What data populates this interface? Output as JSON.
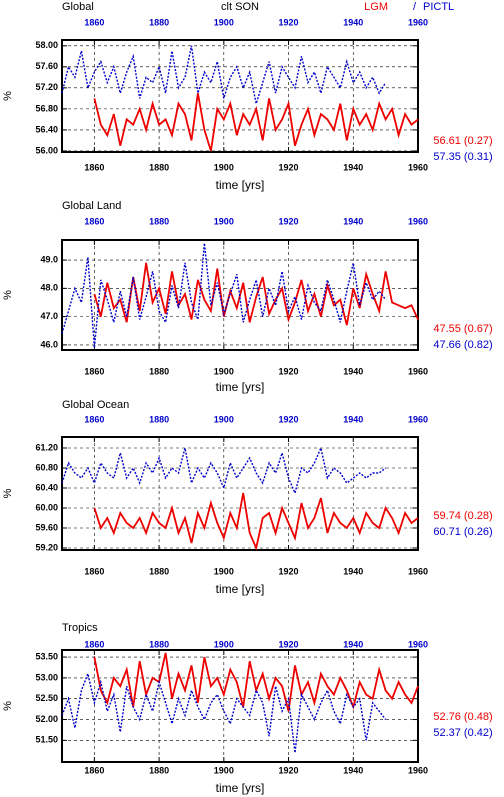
{
  "chart_data": [
    {
      "type": "line",
      "title": "Global",
      "subtitle": "clt SON",
      "legend_separator": "/",
      "xlabel": "time [yrs]",
      "ylabel": "%",
      "xlim": [
        1850,
        1960
      ],
      "xticks": [
        1860,
        1880,
        1900,
        1920,
        1940,
        1960
      ],
      "x2ticks": [
        1860,
        1880,
        1900,
        1920,
        1940,
        1960
      ],
      "x2color": "#0000cc",
      "ylim": [
        55.98,
        58.11
      ],
      "yticks": [
        {
          "value": 56,
          "label": "56.00"
        },
        {
          "value": 56.4,
          "label": "56.40"
        },
        {
          "value": 56.8,
          "label": "56.80"
        },
        {
          "value": 57.2,
          "label": "57.20"
        },
        {
          "value": 57.6,
          "label": "57.60"
        },
        {
          "value": 58,
          "label": "58.00"
        }
      ],
      "grid": true,
      "x": [
        1850,
        1852,
        1854,
        1856,
        1858,
        1860,
        1862,
        1864,
        1866,
        1868,
        1870,
        1872,
        1874,
        1876,
        1878,
        1880,
        1882,
        1884,
        1886,
        1888,
        1890,
        1892,
        1894,
        1896,
        1898,
        1900,
        1902,
        1904,
        1906,
        1908,
        1910,
        1912,
        1914,
        1916,
        1918,
        1920,
        1922,
        1924,
        1926,
        1928,
        1930,
        1932,
        1934,
        1936,
        1938,
        1940,
        1942,
        1944,
        1946,
        1948,
        1950,
        1952,
        1954,
        1956,
        1958,
        1960
      ],
      "series": [
        {
          "name": "LGM",
          "color": "#ee0000",
          "dash": false,
          "summary": "56.61 (0.27)",
          "values": [
            null,
            null,
            null,
            null,
            null,
            57.0,
            56.5,
            56.3,
            56.7,
            56.1,
            56.6,
            56.5,
            56.8,
            56.4,
            56.9,
            56.5,
            56.6,
            56.3,
            56.9,
            56.7,
            56.2,
            57.1,
            56.4,
            56.0,
            56.8,
            56.6,
            56.9,
            56.3,
            56.7,
            56.5,
            56.8,
            56.2,
            57.0,
            56.4,
            56.6,
            56.9,
            56.1,
            56.5,
            56.8,
            56.3,
            56.7,
            56.6,
            56.4,
            56.9,
            56.2,
            56.8,
            56.5,
            56.7,
            56.4,
            56.9,
            56.6,
            56.8,
            56.3,
            56.7,
            56.5,
            56.6
          ]
        },
        {
          "name": "PICTL",
          "color": "#0000cc",
          "dash": true,
          "summary": "57.35 (0.31)",
          "values": [
            57.1,
            57.6,
            57.4,
            57.9,
            57.2,
            57.5,
            57.7,
            57.3,
            57.6,
            57.1,
            57.5,
            57.8,
            57.0,
            57.4,
            57.3,
            57.6,
            57.1,
            57.9,
            57.2,
            57.4,
            58.0,
            57.1,
            57.5,
            57.3,
            57.7,
            57.0,
            57.4,
            57.6,
            57.2,
            57.5,
            56.9,
            57.3,
            57.7,
            57.1,
            57.6,
            57.4,
            57.2,
            57.8,
            57.3,
            57.5,
            57.1,
            57.6,
            57.4,
            57.2,
            57.7,
            57.3,
            57.5,
            57.2,
            57.4,
            57.1,
            57.3,
            null,
            null,
            null,
            null,
            null
          ]
        }
      ]
    },
    {
      "type": "line",
      "title": "Global Land",
      "xlabel": "time [yrs]",
      "ylabel": "%",
      "xlim": [
        1850,
        1960
      ],
      "xticks": [
        1860,
        1880,
        1900,
        1920,
        1940,
        1960
      ],
      "x2ticks": [
        1860,
        1880,
        1900,
        1920,
        1940,
        1960
      ],
      "x2color": "#0000cc",
      "ylim": [
        45.82,
        49.71
      ],
      "yticks": [
        {
          "value": 46,
          "label": "46.0"
        },
        {
          "value": 47,
          "label": "47.0"
        },
        {
          "value": 48,
          "label": "48.0"
        },
        {
          "value": 49,
          "label": "49.0"
        }
      ],
      "grid": true,
      "x": [
        1850,
        1852,
        1854,
        1856,
        1858,
        1860,
        1862,
        1864,
        1866,
        1868,
        1870,
        1872,
        1874,
        1876,
        1878,
        1880,
        1882,
        1884,
        1886,
        1888,
        1890,
        1892,
        1894,
        1896,
        1898,
        1900,
        1902,
        1904,
        1906,
        1908,
        1910,
        1912,
        1914,
        1916,
        1918,
        1920,
        1922,
        1924,
        1926,
        1928,
        1930,
        1932,
        1934,
        1936,
        1938,
        1940,
        1942,
        1944,
        1946,
        1948,
        1950,
        1952,
        1954,
        1956,
        1958,
        1960
      ],
      "series": [
        {
          "color": "#ee0000",
          "dash": false,
          "summary": "47.55 (0.67)",
          "values": [
            null,
            null,
            null,
            null,
            null,
            47.8,
            47.0,
            48.2,
            47.3,
            47.6,
            46.8,
            48.4,
            47.2,
            48.9,
            47.5,
            48.0,
            47.1,
            48.6,
            47.4,
            47.8,
            46.9,
            48.3,
            47.6,
            47.2,
            48.7,
            47.0,
            47.9,
            47.3,
            48.2,
            46.8,
            47.7,
            48.4,
            47.1,
            47.6,
            48.0,
            46.9,
            47.5,
            48.3,
            47.2,
            47.8,
            47.0,
            48.1,
            47.4,
            47.6,
            46.7,
            48.0,
            47.3,
            48.5,
            47.8,
            47.2,
            48.6,
            47.5,
            47.4,
            47.3,
            47.4,
            46.9
          ]
        },
        {
          "color": "#0000cc",
          "dash": true,
          "summary": "47.66 (0.82)",
          "values": [
            46.4,
            47.2,
            48.0,
            47.5,
            49.1,
            45.9,
            48.3,
            47.6,
            46.8,
            47.9,
            47.0,
            48.4,
            46.9,
            47.7,
            48.6,
            47.2,
            46.8,
            48.1,
            47.3,
            48.9,
            47.5,
            46.9,
            49.6,
            47.4,
            48.2,
            47.1,
            47.8,
            48.5,
            46.8,
            47.6,
            48.3,
            47.0,
            48.0,
            47.4,
            48.6,
            47.2,
            47.7,
            46.9,
            48.1,
            47.5,
            47.2,
            48.3,
            47.6,
            46.8,
            47.9,
            48.9,
            47.4,
            48.2,
            47.6,
            47.9,
            47.6,
            null,
            null,
            null,
            null,
            null
          ]
        }
      ]
    },
    {
      "type": "line",
      "title": "Global Ocean",
      "xlabel": "time [yrs]",
      "ylabel": "%",
      "xlim": [
        1850,
        1960
      ],
      "xticks": [
        1860,
        1880,
        1900,
        1920,
        1940,
        1960
      ],
      "x2ticks": [
        1860,
        1880,
        1900,
        1920,
        1940,
        1960
      ],
      "x2color": "#0000cc",
      "ylim": [
        59.16,
        61.42
      ],
      "yticks": [
        {
          "value": 59.2,
          "label": "59.20"
        },
        {
          "value": 59.6,
          "label": "59.60"
        },
        {
          "value": 60,
          "label": "60.00"
        },
        {
          "value": 60.4,
          "label": "60.40"
        },
        {
          "value": 60.8,
          "label": "60.80"
        },
        {
          "value": 61.2,
          "label": "61.20"
        }
      ],
      "grid": true,
      "x": [
        1850,
        1852,
        1854,
        1856,
        1858,
        1860,
        1862,
        1864,
        1866,
        1868,
        1870,
        1872,
        1874,
        1876,
        1878,
        1880,
        1882,
        1884,
        1886,
        1888,
        1890,
        1892,
        1894,
        1896,
        1898,
        1900,
        1902,
        1904,
        1906,
        1908,
        1910,
        1912,
        1914,
        1916,
        1918,
        1920,
        1922,
        1924,
        1926,
        1928,
        1930,
        1932,
        1934,
        1936,
        1938,
        1940,
        1942,
        1944,
        1946,
        1948,
        1950,
        1952,
        1954,
        1956,
        1958,
        1960
      ],
      "series": [
        {
          "color": "#ee0000",
          "dash": false,
          "summary": "59.74 (0.28)",
          "values": [
            null,
            null,
            null,
            null,
            null,
            60.0,
            59.6,
            59.8,
            59.5,
            59.9,
            59.7,
            59.6,
            59.8,
            59.5,
            59.9,
            59.7,
            59.6,
            60.0,
            59.5,
            59.8,
            59.3,
            59.9,
            59.6,
            60.1,
            59.7,
            59.4,
            59.9,
            59.6,
            60.3,
            59.5,
            59.2,
            59.8,
            59.9,
            59.5,
            60.0,
            59.7,
            59.4,
            60.1,
            59.6,
            59.8,
            60.2,
            59.5,
            59.9,
            59.7,
            59.6,
            59.8,
            59.5,
            59.9,
            59.7,
            59.6,
            60.0,
            59.8,
            59.5,
            59.9,
            59.7,
            59.8
          ]
        },
        {
          "color": "#0000cc",
          "dash": true,
          "summary": "60.71 (0.26)",
          "values": [
            60.5,
            60.9,
            60.7,
            60.6,
            60.8,
            60.5,
            60.9,
            60.7,
            60.6,
            61.1,
            60.6,
            60.8,
            60.5,
            60.9,
            60.7,
            61.0,
            60.6,
            60.8,
            60.7,
            61.2,
            60.5,
            60.8,
            60.6,
            60.9,
            60.7,
            60.4,
            60.9,
            60.6,
            60.8,
            61.0,
            60.7,
            60.5,
            60.9,
            60.7,
            61.1,
            60.6,
            60.3,
            60.8,
            60.7,
            60.9,
            61.2,
            60.6,
            60.8,
            60.7,
            60.5,
            60.6,
            60.7,
            60.6,
            60.7,
            60.7,
            60.8,
            null,
            null,
            null,
            null,
            null
          ]
        }
      ]
    },
    {
      "type": "line",
      "title": "Tropics",
      "xlabel": "time [yrs]",
      "ylabel": "%",
      "xlim": [
        1850,
        1960
      ],
      "xticks": [
        1860,
        1880,
        1900,
        1920,
        1940,
        1960
      ],
      "x2ticks": [
        1860,
        1880,
        1900,
        1920,
        1940,
        1960
      ],
      "x2color": "#0000cc",
      "ylim": [
        50.98,
        53.67
      ],
      "yticks": [
        {
          "value": 51.5,
          "label": "51.50"
        },
        {
          "value": 52,
          "label": "52.00"
        },
        {
          "value": 52.5,
          "label": "52.50"
        },
        {
          "value": 53,
          "label": "53.00"
        },
        {
          "value": 53.5,
          "label": "53.50"
        }
      ],
      "grid": true,
      "x": [
        1850,
        1852,
        1854,
        1856,
        1858,
        1860,
        1862,
        1864,
        1866,
        1868,
        1870,
        1872,
        1874,
        1876,
        1878,
        1880,
        1882,
        1884,
        1886,
        1888,
        1890,
        1892,
        1894,
        1896,
        1898,
        1900,
        1902,
        1904,
        1906,
        1908,
        1910,
        1912,
        1914,
        1916,
        1918,
        1920,
        1922,
        1924,
        1926,
        1928,
        1930,
        1932,
        1934,
        1936,
        1938,
        1940,
        1942,
        1944,
        1946,
        1948,
        1950,
        1952,
        1954,
        1956,
        1958,
        1960
      ],
      "series": [
        {
          "color": "#ee0000",
          "dash": false,
          "summary": "52.76 (0.48)",
          "values": [
            null,
            null,
            null,
            null,
            null,
            53.5,
            52.7,
            52.4,
            53.0,
            52.8,
            53.2,
            52.3,
            53.4,
            52.6,
            53.0,
            52.9,
            53.6,
            52.5,
            53.1,
            52.7,
            53.3,
            52.4,
            53.5,
            52.8,
            53.0,
            52.6,
            53.2,
            52.9,
            52.3,
            53.4,
            52.7,
            53.1,
            52.5,
            53.0,
            52.8,
            52.2,
            53.3,
            52.6,
            52.9,
            52.4,
            53.1,
            52.8,
            52.6,
            53.0,
            52.7,
            52.3,
            52.9,
            52.6,
            52.5,
            53.2,
            52.7,
            52.5,
            52.9,
            52.6,
            52.4,
            52.8
          ]
        },
        {
          "color": "#0000cc",
          "dash": true,
          "summary": "52.37 (0.42)",
          "values": [
            52.1,
            52.5,
            51.8,
            52.7,
            53.1,
            52.4,
            52.9,
            52.2,
            52.6,
            51.7,
            52.8,
            52.3,
            52.0,
            52.6,
            52.2,
            52.9,
            52.4,
            51.9,
            52.5,
            52.1,
            52.7,
            52.3,
            52.0,
            52.4,
            52.6,
            52.2,
            51.9,
            52.5,
            52.3,
            52.1,
            52.7,
            52.4,
            51.6,
            52.8,
            52.2,
            52.5,
            51.2,
            52.6,
            52.3,
            52.0,
            52.4,
            52.7,
            52.2,
            51.9,
            52.6,
            52.3,
            52.5,
            51.5,
            52.4,
            52.2,
            52.0,
            null,
            null,
            null,
            null,
            null
          ]
        }
      ]
    }
  ]
}
